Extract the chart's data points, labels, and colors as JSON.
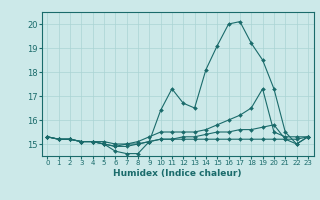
{
  "xlabel": "Humidex (Indice chaleur)",
  "ylabel": "",
  "xlim": [
    -0.5,
    23.5
  ],
  "ylim": [
    14.5,
    20.5
  ],
  "yticks": [
    15,
    16,
    17,
    18,
    19,
    20
  ],
  "xticks": [
    0,
    1,
    2,
    3,
    4,
    5,
    6,
    7,
    8,
    9,
    10,
    11,
    12,
    13,
    14,
    15,
    16,
    17,
    18,
    19,
    20,
    21,
    22,
    23
  ],
  "bg_color": "#cce9e9",
  "line_color": "#1a6b6b",
  "grid_color": "#aad4d4",
  "lines": [
    [
      15.3,
      15.2,
      15.2,
      15.1,
      15.1,
      15.0,
      14.7,
      14.6,
      14.6,
      15.1,
      16.4,
      17.3,
      16.7,
      16.5,
      18.1,
      19.1,
      20.0,
      20.1,
      19.2,
      18.5,
      17.3,
      15.5,
      15.0,
      15.3
    ],
    [
      15.3,
      15.2,
      15.2,
      15.1,
      15.1,
      15.0,
      14.9,
      15.0,
      15.1,
      15.3,
      15.5,
      15.5,
      15.5,
      15.5,
      15.6,
      15.8,
      16.0,
      16.2,
      16.5,
      17.3,
      15.5,
      15.3,
      15.3,
      15.3
    ],
    [
      15.3,
      15.2,
      15.2,
      15.1,
      15.1,
      15.1,
      15.0,
      15.0,
      15.0,
      15.1,
      15.2,
      15.2,
      15.3,
      15.3,
      15.4,
      15.5,
      15.5,
      15.6,
      15.6,
      15.7,
      15.8,
      15.2,
      15.0,
      15.3
    ],
    [
      15.3,
      15.2,
      15.2,
      15.1,
      15.1,
      15.0,
      14.9,
      14.9,
      15.0,
      15.1,
      15.2,
      15.2,
      15.2,
      15.2,
      15.2,
      15.2,
      15.2,
      15.2,
      15.2,
      15.2,
      15.2,
      15.2,
      15.2,
      15.3
    ]
  ]
}
